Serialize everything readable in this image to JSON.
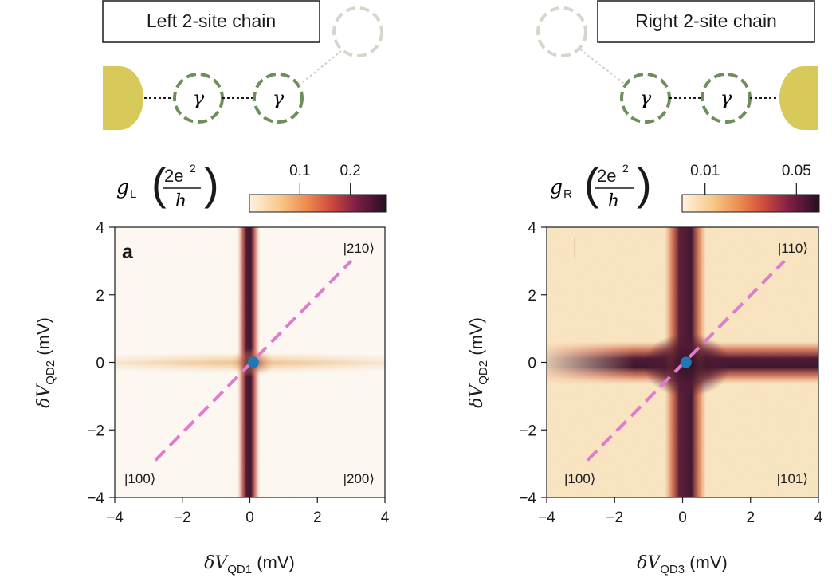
{
  "left": {
    "chain_title": "Left 2-site chain",
    "dot_label_1": "γ",
    "dot_label_2": "γ",
    "g_symbol": "g",
    "g_subscript": "L",
    "units_numerator": "2e",
    "units_exponent": "2",
    "units_denominator": "h",
    "colorbar_ticks": [
      "0.1",
      "0.2"
    ],
    "colorbar_tick_values": [
      0.1,
      0.2
    ],
    "colorbar_range": [
      0.0,
      0.27
    ],
    "panel_label": "a",
    "state_top_right": "|210⟩",
    "state_bottom_left": "|100⟩",
    "state_bottom_right": "|200⟩",
    "ylabel_delta": "δV",
    "ylabel_sub": "QD2",
    "ylabel_unit": " (mV)",
    "xlabel_delta": "δV",
    "xlabel_sub": "QD1",
    "xlabel_unit": " (mV)"
  },
  "right": {
    "chain_title": "Right 2-site chain",
    "dot_label_1": "γ",
    "dot_label_2": "γ",
    "g_symbol": "g",
    "g_subscript": "R",
    "units_numerator": "2e",
    "units_exponent": "2",
    "units_denominator": "h",
    "colorbar_ticks": [
      "0.01",
      "0.05"
    ],
    "colorbar_tick_values": [
      0.01,
      0.05
    ],
    "colorbar_range": [
      0.0,
      0.06
    ],
    "state_top_right": "|110⟩",
    "state_bottom_left": "|100⟩",
    "state_bottom_right": "|101⟩",
    "ylabel_delta": "δV",
    "ylabel_sub": "QD2",
    "ylabel_unit": " (mV)",
    "xlabel_delta": "δV",
    "xlabel_sub": "QD3",
    "xlabel_unit": " (mV)"
  },
  "colors": {
    "lead": "#d7c95a",
    "dot_outline": "#6e8f5a",
    "ghost_dot": "#d5d7cc",
    "diagonal_line": "#e07ccc",
    "marker": "#1f78b4"
  },
  "chart_data": [
    {
      "type": "heatmap",
      "title": "Left 2-site chain",
      "xlabel": "δV_QD1 (mV)",
      "ylabel": "δV_QD2 (mV)",
      "xlim": [
        -4,
        4
      ],
      "ylim": [
        -4,
        4
      ],
      "xticks": [
        -4,
        -2,
        0,
        2,
        4
      ],
      "yticks": [
        -4,
        -2,
        0,
        2,
        4
      ],
      "xtick_labels": [
        "−4",
        "−2",
        "0",
        "2",
        "4"
      ],
      "ytick_labels": [
        "−4",
        "−2",
        "0",
        "2",
        "4"
      ],
      "vertical_resonance_x": 0.05,
      "horizontal_resonance_y": 0.0,
      "diagonal_line": {
        "x": [
          -2.8,
          3.0
        ],
        "y": [
          -2.9,
          3.0
        ]
      },
      "marker": {
        "x": 0.1,
        "y": 0.0
      }
    },
    {
      "type": "heatmap",
      "title": "Right 2-site chain",
      "xlabel": "δV_QD3 (mV)",
      "ylabel": "δV_QD2 (mV)",
      "xlim": [
        -4,
        4
      ],
      "ylim": [
        -4,
        4
      ],
      "xticks": [
        -4,
        -2,
        0,
        2,
        4
      ],
      "yticks": [
        -4,
        -2,
        0,
        2,
        4
      ],
      "xtick_labels": [
        "−4",
        "−2",
        "0",
        "2",
        "4"
      ],
      "ytick_labels": [
        "−4",
        "−2",
        "0",
        "2",
        "4"
      ],
      "vertical_resonance_x": 0.1,
      "horizontal_resonance_y": 0.0,
      "diagonal_line": {
        "x": [
          -2.8,
          3.0
        ],
        "y": [
          -2.9,
          3.0
        ]
      },
      "marker": {
        "x": 0.1,
        "y": 0.0
      }
    }
  ]
}
